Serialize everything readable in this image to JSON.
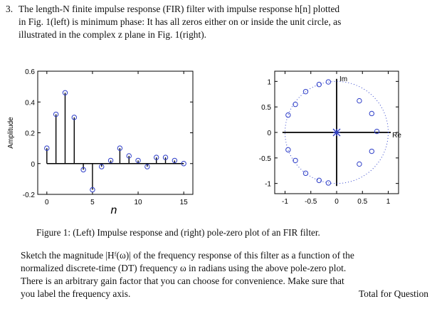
{
  "problem": {
    "number": "3.",
    "line1": "The length-N finite impulse response (FIR) filter with impulse response h[n] plotted",
    "line2": "in Fig. 1(left) is minimum phase: It has all zeros either on or inside the unit circle, as",
    "line3": "illustrated in the complex z plane in Fig. 1(right)."
  },
  "caption": "Figure 1: (Left) Impulse response and (right) pole-zero plot of an FIR filter.",
  "task": {
    "line1": "Sketch the magnitude |Hᶠ(ω)| of the frequency response of this filter as a function of the",
    "line2": "normalized discrete-time (DT) frequency ω in radians using the above pole-zero plot.",
    "line3": "There is an arbitrary gain factor that you can choose for convenience. Make sure that",
    "line4": "you label the frequency axis.",
    "trailer": "Total for Question"
  },
  "chart_data": [
    {
      "type": "scatter",
      "plot_style": "stem",
      "xlabel": "n",
      "ylabel": "Amplitude",
      "xlim": [
        -1,
        16
      ],
      "ylim": [
        -0.2,
        0.6
      ],
      "x_ticks": [
        "0",
        "5",
        "10",
        "15"
      ],
      "y_ticks": [
        "-0.2",
        "0",
        "0.2",
        "0.4",
        "0.6"
      ],
      "x": [
        0,
        1,
        2,
        3,
        4,
        5,
        6,
        7,
        8,
        9,
        10,
        11,
        12,
        13,
        14,
        15
      ],
      "y": [
        0.1,
        0.32,
        0.46,
        0.3,
        -0.04,
        -0.17,
        -0.02,
        0.02,
        0.1,
        0.05,
        0.02,
        -0.02,
        0.04,
        0.04,
        0.02,
        0.0
      ]
    },
    {
      "type": "scatter",
      "plot_style": "pole-zero",
      "xlabel": "Re",
      "ylabel": "Im",
      "xlim": [
        -1.2,
        1.2
      ],
      "ylim": [
        -1.2,
        1.2
      ],
      "x_ticks": [
        "-1",
        "-0.5",
        "0",
        "0.5",
        "1"
      ],
      "y_ticks": [
        "1",
        "0.5",
        "0",
        "-0.5",
        "-1"
      ],
      "unit_circle": true,
      "zeros": [
        {
          "re": -0.34,
          "im": 0.94
        },
        {
          "re": -0.34,
          "im": -0.94
        },
        {
          "re": -0.6,
          "im": 0.8
        },
        {
          "re": -0.6,
          "im": -0.8
        },
        {
          "re": -0.8,
          "im": 0.55
        },
        {
          "re": -0.8,
          "im": -0.55
        },
        {
          "re": -0.94,
          "im": 0.34
        },
        {
          "re": -0.94,
          "im": -0.34
        },
        {
          "re": -0.16,
          "im": 0.99
        },
        {
          "re": -0.16,
          "im": -0.99
        },
        {
          "re": 0.44,
          "im": 0.62
        },
        {
          "re": 0.44,
          "im": -0.62
        },
        {
          "re": 0.68,
          "im": 0.37
        },
        {
          "re": 0.68,
          "im": -0.37
        },
        {
          "re": 0.78,
          "im": 0.02
        }
      ],
      "poles": [
        {
          "re": 0.0,
          "im": 0.0
        }
      ]
    }
  ]
}
